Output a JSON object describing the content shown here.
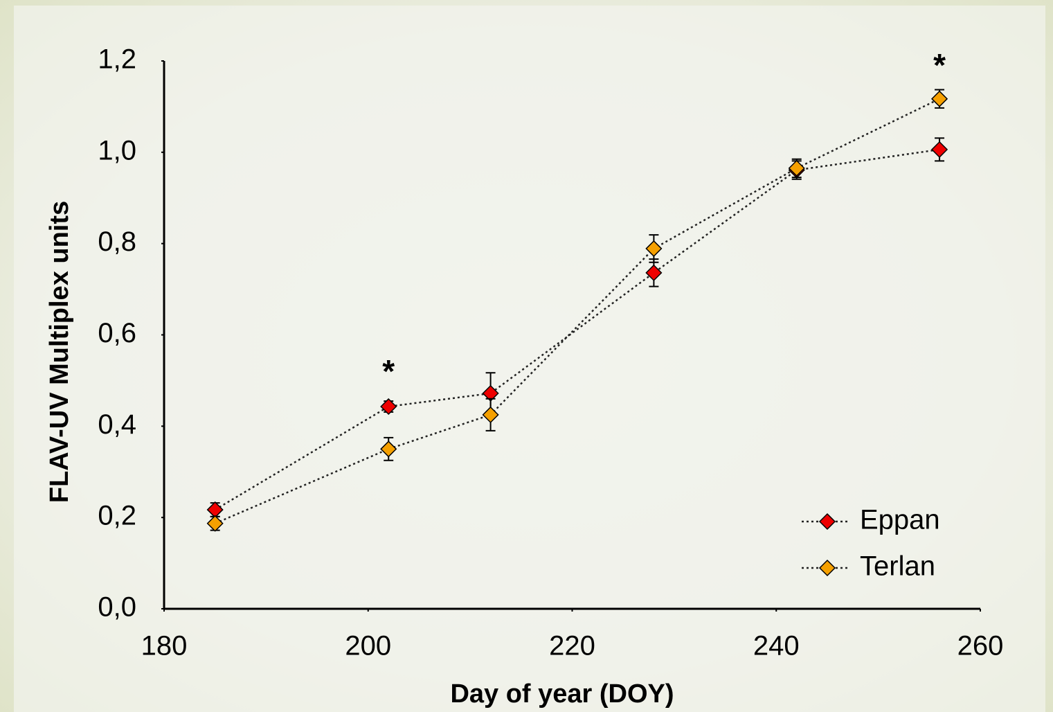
{
  "chart_data": {
    "type": "line",
    "x_label": "Day of year (DOY)",
    "y_label": "FLAV-UV Multiplex units",
    "x": [
      185,
      202,
      212,
      228,
      242,
      256
    ],
    "series": [
      {
        "name": "Eppan",
        "color": "#ee0000",
        "values": [
          0.217,
          0.443,
          0.472,
          0.736,
          0.961,
          1.006
        ],
        "errors": [
          0.015,
          0.012,
          0.045,
          0.03,
          0.02,
          0.025
        ]
      },
      {
        "name": "Terlan",
        "color": "#f5a000",
        "values": [
          0.187,
          0.35,
          0.425,
          0.789,
          0.965,
          1.117
        ],
        "errors": [
          0.015,
          0.025,
          0.035,
          0.03,
          0.02,
          0.02
        ]
      }
    ],
    "annotations": [
      {
        "text": "*",
        "x": 202,
        "y": 0.53
      },
      {
        "text": "*",
        "x": 256,
        "y": 1.2
      }
    ],
    "xlim": [
      180,
      260
    ],
    "xticks": [
      180,
      200,
      220,
      240,
      260
    ],
    "ylim": [
      0,
      1.2
    ],
    "yticks": [
      {
        "value": 0,
        "label": "0,0"
      },
      {
        "value": 0.2,
        "label": "0,2"
      },
      {
        "value": 0.4,
        "label": "0,4"
      },
      {
        "value": 0.6,
        "label": "0,6"
      },
      {
        "value": 0.8,
        "label": "0,8"
      },
      {
        "value": 1.0,
        "label": "1,0"
      },
      {
        "value": 1.2,
        "label": "1,2"
      }
    ],
    "grid": false,
    "legend": "lower right"
  }
}
